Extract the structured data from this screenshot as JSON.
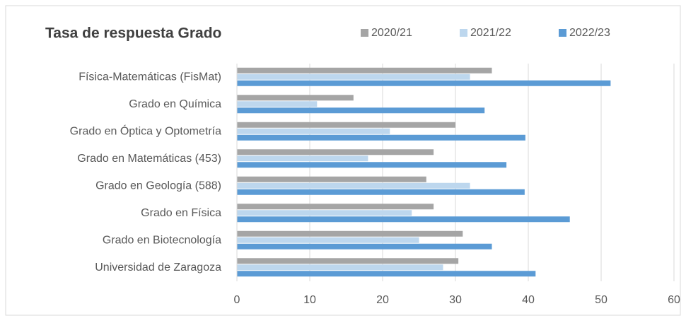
{
  "chart_data": {
    "type": "barh",
    "title": "Tasa de respuesta Grado",
    "categories": [
      "Física-Matemáticas (FisMat)",
      "Grado en Química",
      "Grado en Óptica y Optometría",
      "Grado en Matemáticas (453)",
      "Grado en Geología (588)",
      "Grado en Física",
      "Grado en Biotecnología",
      "Universidad de Zaragoza"
    ],
    "series": [
      {
        "name": "2020/21",
        "color": "#a5a5a5",
        "values": [
          35,
          16,
          30,
          27,
          26,
          27,
          31,
          30.4
        ]
      },
      {
        "name": "2021/22",
        "color": "#bdd7ee",
        "values": [
          32,
          11,
          21,
          18,
          32,
          24,
          25,
          28.3
        ]
      },
      {
        "name": "2022/23",
        "color": "#5b9bd5",
        "values": [
          51.3,
          34,
          39.6,
          37,
          39.5,
          45.7,
          35,
          41
        ]
      }
    ],
    "xlim": [
      0,
      60
    ],
    "xticks": [
      0,
      10,
      20,
      30,
      40,
      50,
      60
    ],
    "grid": true,
    "legend": "top"
  }
}
